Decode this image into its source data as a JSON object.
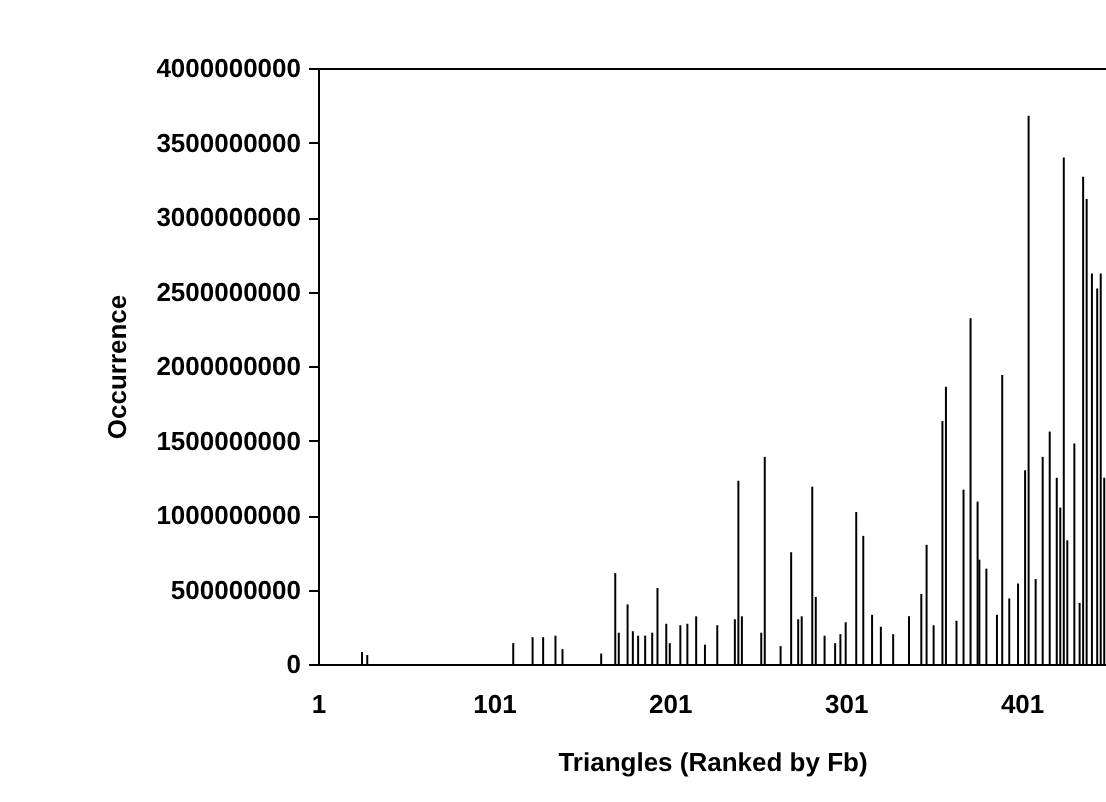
{
  "chart_data": {
    "type": "bar",
    "xlabel": "Triangles (Ranked by Fb)",
    "ylabel": "Occurrence",
    "x": [
      26,
      29,
      112,
      123,
      129,
      136,
      140,
      162,
      170,
      172,
      177,
      180,
      183,
      187,
      191,
      194,
      199,
      201,
      207,
      211,
      216,
      221,
      228,
      238,
      240,
      242,
      253,
      255,
      264,
      270,
      274,
      276,
      282,
      284,
      289,
      295,
      298,
      301,
      307,
      311,
      316,
      321,
      328,
      337,
      344,
      347,
      351,
      356,
      358,
      364,
      368,
      372,
      376,
      377,
      381,
      387,
      390,
      394,
      399,
      403,
      405,
      409,
      413,
      417,
      421,
      423,
      425,
      427,
      431,
      434,
      436,
      438,
      441,
      444,
      446,
      448
    ],
    "series": [
      {
        "color": "#000000",
        "values": [
          80000000,
          60000000,
          140000000,
          180000000,
          180000000,
          190000000,
          100000000,
          70000000,
          610000000,
          210000000,
          400000000,
          220000000,
          190000000,
          190000000,
          210000000,
          510000000,
          270000000,
          140000000,
          260000000,
          270000000,
          320000000,
          130000000,
          260000000,
          300000000,
          1230000000,
          320000000,
          210000000,
          1390000000,
          120000000,
          750000000,
          300000000,
          320000000,
          1190000000,
          450000000,
          190000000,
          140000000,
          200000000,
          280000000,
          1020000000,
          860000000,
          330000000,
          250000000,
          200000000,
          320000000,
          470000000,
          800000000,
          260000000,
          1630000000,
          1860000000,
          290000000,
          1170000000,
          2320000000,
          1090000000,
          700000000,
          640000000,
          330000000,
          1940000000,
          440000000,
          540000000,
          1300000000,
          3680000000,
          570000000,
          1390000000,
          1560000000,
          1250000000,
          1050000000,
          3400000000,
          830000000,
          1480000000,
          410000000,
          3270000000,
          3120000000,
          2620000000,
          2520000000,
          2620000000,
          1250000000
        ]
      }
    ],
    "xlim": [
      1,
      449
    ],
    "xticks": [
      1,
      101,
      201,
      301,
      401
    ],
    "ylim": [
      0,
      4000000000
    ],
    "yticks": [
      0,
      500000000,
      1000000000,
      1500000000,
      2000000000,
      2500000000,
      3000000000,
      3500000000,
      4000000000
    ],
    "grid": false,
    "legend": false
  }
}
